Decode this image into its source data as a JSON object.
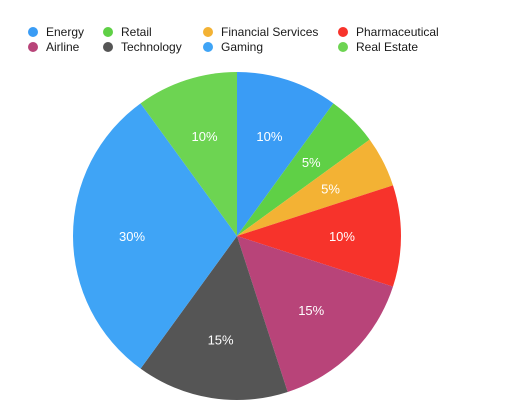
{
  "chart_data": {
    "type": "pie",
    "title": "",
    "legend_position": "top",
    "start_angle_deg": 0,
    "direction": "clockwise",
    "slices": [
      {
        "label": "Energy",
        "value": 10,
        "display": "10%",
        "color": "#3a9cf5"
      },
      {
        "label": "Retail",
        "value": 5,
        "display": "5%",
        "color": "#5fd046"
      },
      {
        "label": "Financial Services",
        "value": 5,
        "display": "5%",
        "color": "#f3b234"
      },
      {
        "label": "Pharmaceutical",
        "value": 10,
        "display": "10%",
        "color": "#f7332b"
      },
      {
        "label": "Airline",
        "value": 15,
        "display": "15%",
        "color": "#b84479"
      },
      {
        "label": "Technology",
        "value": 15,
        "display": "15%",
        "color": "#555555"
      },
      {
        "label": "Gaming",
        "value": 30,
        "display": "30%",
        "color": "#3fa4f6"
      },
      {
        "label": "Real Estate",
        "value": 10,
        "display": "10%",
        "color": "#6dd452"
      }
    ]
  }
}
